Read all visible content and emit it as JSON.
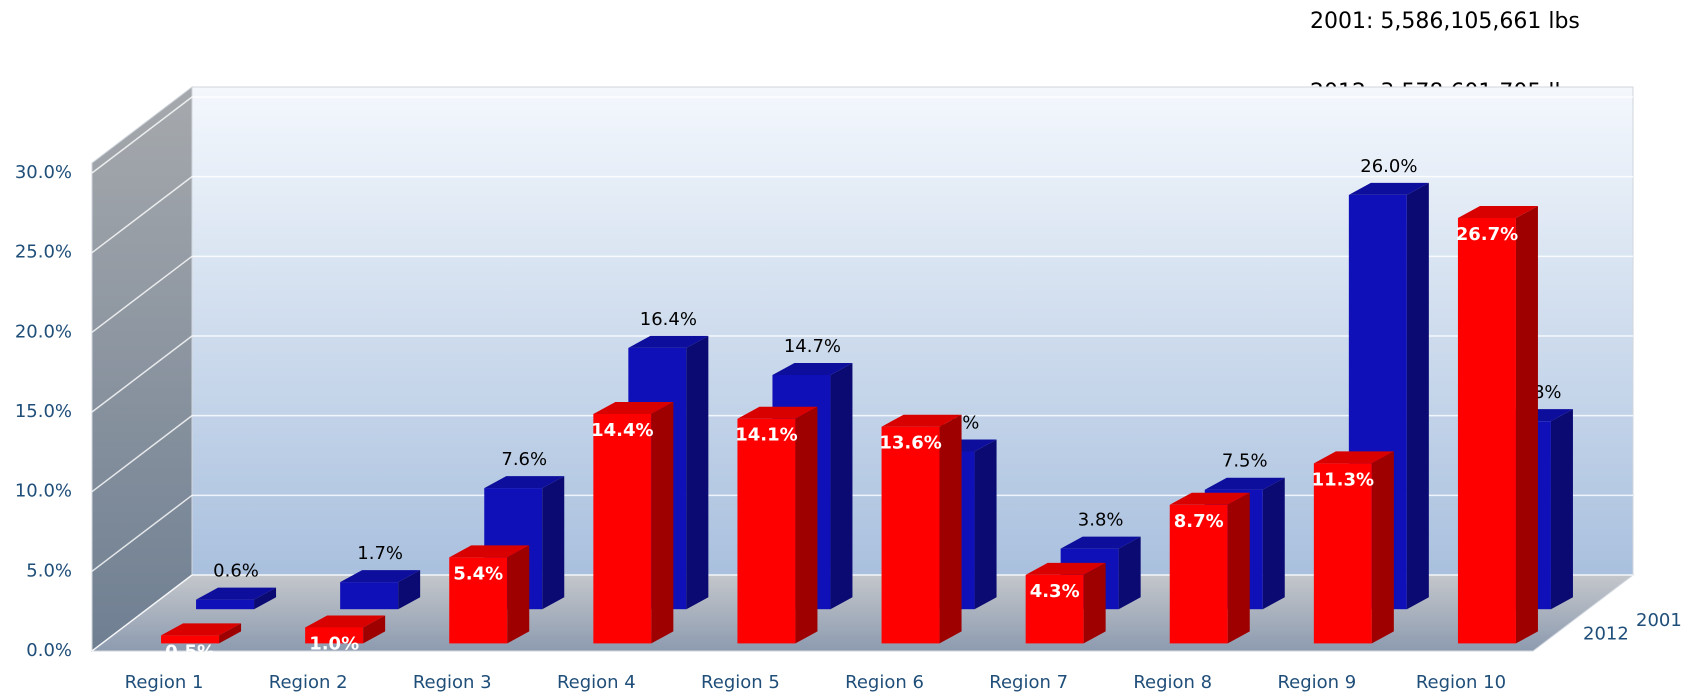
{
  "chart_data": {
    "type": "bar3d",
    "annotations": [
      "2001: 5,586,105,661 lbs",
      "2012: 3,578,601,705 lbs"
    ],
    "categories": [
      "Region 1",
      "Region 2",
      "Region 3",
      "Region 4",
      "Region 5",
      "Region 6",
      "Region 7",
      "Region 8",
      "Region 9",
      "Region 10"
    ],
    "series": [
      {
        "name": "2001",
        "color": "#1010b8",
        "values": [
          0.6,
          1.7,
          7.6,
          16.4,
          14.7,
          9.9,
          3.8,
          7.5,
          26.0,
          11.8
        ],
        "value_labels": [
          "0.6%",
          "1.7%",
          "7.6%",
          "16.4%",
          "14.7%",
          "9.9%",
          "3.8%",
          "7.5%",
          "26.0%",
          "11.8%"
        ]
      },
      {
        "name": "2012",
        "color": "#ff0000",
        "values": [
          0.5,
          1.0,
          5.4,
          14.4,
          14.1,
          13.6,
          4.3,
          8.7,
          11.3,
          26.7
        ],
        "value_labels": [
          "0.5%",
          "1.0%",
          "5.4%",
          "14.4%",
          "14.1%",
          "13.6%",
          "4.3%",
          "8.7%",
          "11.3%",
          "26.7%"
        ]
      }
    ],
    "ylim": [
      0,
      30
    ],
    "yticks": [
      {
        "value": 0,
        "label": "0.0%"
      },
      {
        "value": 5,
        "label": "5.0%"
      },
      {
        "value": 10,
        "label": "10.0%"
      },
      {
        "value": 15,
        "label": "15.0%"
      },
      {
        "value": 20,
        "label": "20.0%"
      },
      {
        "value": 25,
        "label": "25.0%"
      },
      {
        "value": 30,
        "label": "30.0%"
      }
    ],
    "grid": true
  }
}
